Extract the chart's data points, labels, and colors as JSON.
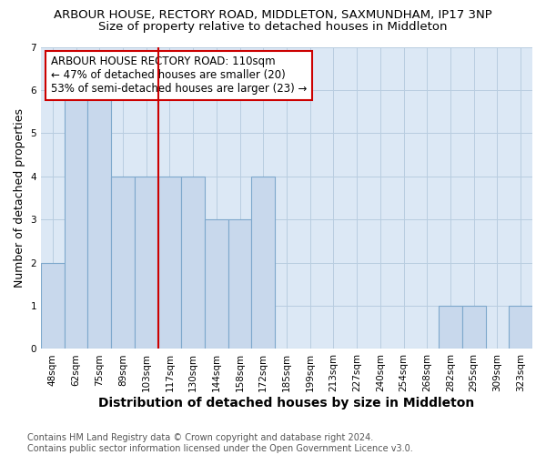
{
  "title1": "ARBOUR HOUSE, RECTORY ROAD, MIDDLETON, SAXMUNDHAM, IP17 3NP",
  "title2": "Size of property relative to detached houses in Middleton",
  "xlabel": "Distribution of detached houses by size in Middleton",
  "ylabel": "Number of detached properties",
  "categories": [
    "48sqm",
    "62sqm",
    "75sqm",
    "89sqm",
    "103sqm",
    "117sqm",
    "130sqm",
    "144sqm",
    "158sqm",
    "172sqm",
    "185sqm",
    "199sqm",
    "213sqm",
    "227sqm",
    "240sqm",
    "254sqm",
    "268sqm",
    "282sqm",
    "295sqm",
    "309sqm",
    "323sqm"
  ],
  "values": [
    2,
    6,
    6,
    4,
    4,
    4,
    4,
    3,
    3,
    4,
    0,
    0,
    0,
    0,
    0,
    0,
    0,
    1,
    1,
    0,
    1
  ],
  "bar_color": "#c8d8ec",
  "bar_edge_color": "#7ea8cc",
  "vline_x": 4.5,
  "vline_color": "#cc0000",
  "annotation_text": "ARBOUR HOUSE RECTORY ROAD: 110sqm\n← 47% of detached houses are smaller (20)\n53% of semi-detached houses are larger (23) →",
  "annotation_box_color": "#ffffff",
  "annotation_box_edge": "#cc0000",
  "ylim": [
    0,
    7
  ],
  "yticks": [
    0,
    1,
    2,
    3,
    4,
    5,
    6,
    7
  ],
  "footer": "Contains HM Land Registry data © Crown copyright and database right 2024.\nContains public sector information licensed under the Open Government Licence v3.0.",
  "bg_color": "#ffffff",
  "plot_bg_color": "#dce8f5",
  "title1_fontsize": 9.5,
  "title2_fontsize": 9.5,
  "ylabel_fontsize": 9,
  "xlabel_fontsize": 10,
  "tick_fontsize": 7.5,
  "footer_fontsize": 7,
  "annotation_fontsize": 8.5
}
